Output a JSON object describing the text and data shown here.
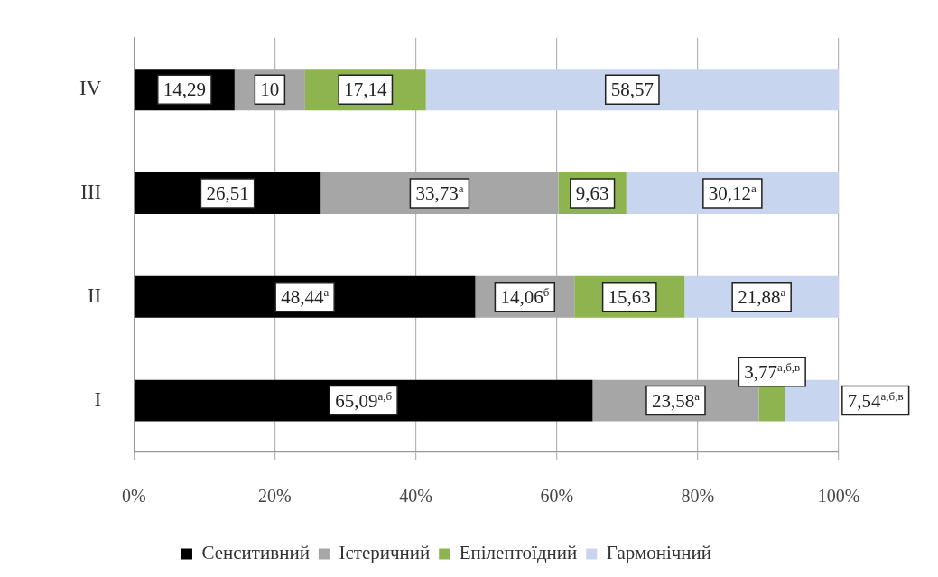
{
  "chart_data": {
    "type": "bar",
    "orientation": "horizontal",
    "stacked": true,
    "categories": [
      "IV",
      "III",
      "II",
      "I"
    ],
    "series": [
      {
        "name": "Сенситивний",
        "color": "#000000",
        "values": [
          14.29,
          26.51,
          48.44,
          65.09
        ],
        "value_labels": [
          "14,29",
          "26,51",
          "48,44$^{а}$",
          "65,09$^{а,б}$"
        ]
      },
      {
        "name": "Істеричний",
        "color": "#a6a6a6",
        "values": [
          10,
          33.73,
          14.06,
          23.58
        ],
        "value_labels": [
          "10",
          "33,73$^{а}$",
          "14,06$^{б}$",
          "23,58$^{а}$"
        ]
      },
      {
        "name": "Епілептоїдний",
        "color": "#8eb44f",
        "values": [
          17.14,
          9.63,
          15.63,
          3.77
        ],
        "value_labels": [
          "17,14",
          "9,63",
          "15,63",
          "3,77$^{а,б,в}$"
        ]
      },
      {
        "name": "Гармонічний",
        "color": "#c8d5ef",
        "values": [
          58.57,
          30.12,
          21.88,
          7.54
        ],
        "value_labels": [
          "58,57",
          "30,12$^{а}$",
          "21,88$^{а}$",
          "7,54$^{а,б,в}$"
        ]
      }
    ],
    "xlim": [
      0,
      100
    ],
    "xticks": [
      {
        "value": 0,
        "label": "0%"
      },
      {
        "value": 20,
        "label": "20%"
      },
      {
        "value": 40,
        "label": "40%"
      },
      {
        "value": 60,
        "label": "60%"
      },
      {
        "value": 80,
        "label": "80%"
      },
      {
        "value": 100,
        "label": "100%"
      }
    ],
    "grid": "x",
    "legend": "bottom"
  }
}
